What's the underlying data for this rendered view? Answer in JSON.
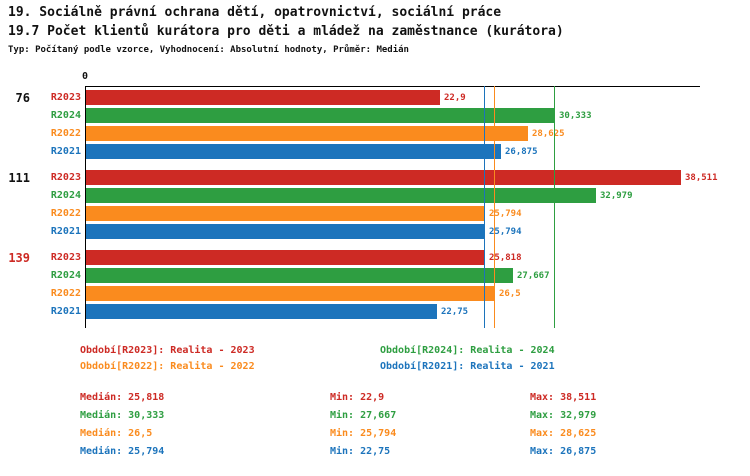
{
  "title": "19. Sociálně právní ochrana dětí, opatrovnictví, sociální práce",
  "subtitle": "19.7 Počet klientů kurátora pro děti a mládež na zaměstnance (kurátora)",
  "meta": "Typ: Počítaný podle vzorce, Vyhodnocení: Absolutní hodnoty, Průměr: Medián",
  "chart_data": {
    "type": "bar",
    "orientation": "horizontal",
    "axis_origin_label": "0",
    "xlim": [
      0,
      38.9
    ],
    "grid": false,
    "series_colors": {
      "R2023": "#cd2a24",
      "R2024": "#2e9e41",
      "R2022": "#fa8b1e",
      "R2021": "#1c74bc"
    },
    "groups": [
      {
        "label": "76",
        "label_color": "#111111",
        "bars": [
          {
            "series": "R2023",
            "value": 22.9,
            "label": "22,9"
          },
          {
            "series": "R2024",
            "value": 30.333,
            "label": "30,333"
          },
          {
            "series": "R2022",
            "value": 28.625,
            "label": "28,625"
          },
          {
            "series": "R2021",
            "value": 26.875,
            "label": "26,875"
          }
        ]
      },
      {
        "label": "111",
        "label_color": "#111111",
        "bars": [
          {
            "series": "R2023",
            "value": 38.511,
            "label": "38,511"
          },
          {
            "series": "R2024",
            "value": 32.979,
            "label": "32,979"
          },
          {
            "series": "R2022",
            "value": 25.794,
            "label": "25,794"
          },
          {
            "series": "R2021",
            "value": 25.794,
            "label": "25,794"
          }
        ]
      },
      {
        "label": "139",
        "label_color": "#cd2a24",
        "bars": [
          {
            "series": "R2023",
            "value": 25.818,
            "label": "25,818"
          },
          {
            "series": "R2024",
            "value": 27.667,
            "label": "27,667"
          },
          {
            "series": "R2022",
            "value": 26.5,
            "label": "26,5"
          },
          {
            "series": "R2021",
            "value": 22.75,
            "label": "22,75"
          }
        ]
      }
    ],
    "median_lines": [
      {
        "series": "R2023",
        "value": 25.818
      },
      {
        "series": "R2024",
        "value": 30.333
      },
      {
        "series": "R2022",
        "value": 26.5
      },
      {
        "series": "R2021",
        "value": 25.794
      }
    ]
  },
  "legend": [
    {
      "series": "R2023",
      "label": "Období[R2023]: Realita - 2023"
    },
    {
      "series": "R2024",
      "label": "Období[R2024]: Realita - 2024"
    },
    {
      "series": "R2022",
      "label": "Období[R2022]: Realita - 2022"
    },
    {
      "series": "R2021",
      "label": "Období[R2021]: Realita - 2021"
    }
  ],
  "stats": [
    {
      "series": "R2023",
      "median": "Medián: 25,818",
      "min": "Min: 22,9",
      "max": "Max: 38,511"
    },
    {
      "series": "R2024",
      "median": "Medián: 30,333",
      "min": "Min: 27,667",
      "max": "Max: 32,979"
    },
    {
      "series": "R2022",
      "median": "Medián: 26,5",
      "min": "Min: 25,794",
      "max": "Max: 28,625"
    },
    {
      "series": "R2021",
      "median": "Medián: 25,794",
      "min": "Min: 22,75",
      "max": "Max: 26,875"
    }
  ]
}
